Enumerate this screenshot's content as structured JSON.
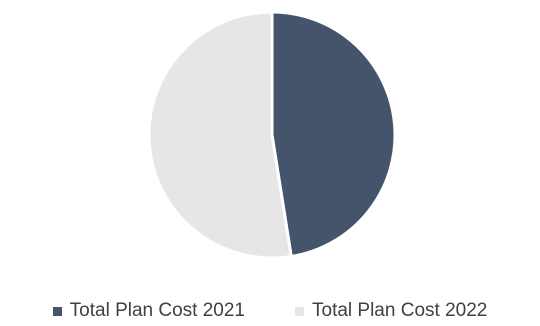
{
  "chart_data": {
    "type": "pie",
    "title": "",
    "categories": [
      "Total Plan Cost 2021",
      "Total Plan Cost 2022"
    ],
    "values": [
      47.5,
      52.5
    ],
    "colors": [
      "#44546a",
      "#e7e6e6"
    ],
    "start_angle_deg": 0,
    "direction": "clockwise",
    "legend_position": "bottom",
    "data_labels_shown": false
  }
}
